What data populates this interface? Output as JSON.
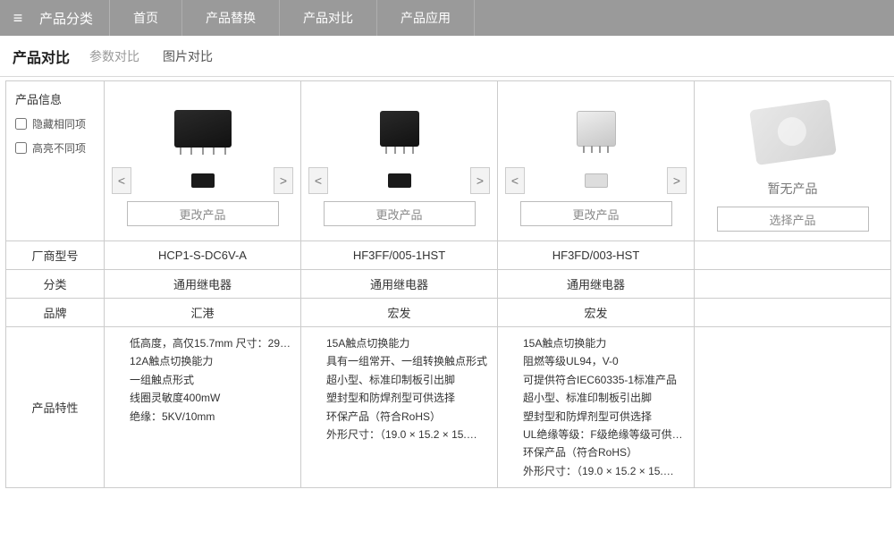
{
  "topnav": {
    "category_label": "产品分类",
    "items": [
      "首页",
      "产品替换",
      "产品对比",
      "产品应用"
    ]
  },
  "subheader": {
    "title": "产品对比",
    "tabs": [
      {
        "label": "参数对比",
        "active": true
      },
      {
        "label": "图片对比",
        "active": false
      }
    ]
  },
  "info_panel": {
    "title": "产品信息",
    "hide_same_label": "隐藏相同项",
    "highlight_diff_label": "高亮不同项"
  },
  "row_labels": {
    "model": "厂商型号",
    "category": "分类",
    "brand": "品牌",
    "features": "产品特性"
  },
  "buttons": {
    "change_product": "更改产品",
    "select_product": "选择产品"
  },
  "empty_slot": {
    "label": "暂无产品"
  },
  "products": [
    {
      "model": "HCP1-S-DC6V-A",
      "category": "通用继电器",
      "brand": "汇港",
      "img_variant": "wide_dark",
      "features": [
        "低高度，高仅15.7mm 尺寸：29.0×…",
        "12A触点切换能力",
        "一组触点形式",
        "线圈灵敏度400mW",
        "绝缘：5KV/10mm"
      ]
    },
    {
      "model": "HF3FF/005-1HST",
      "category": "通用继电器",
      "brand": "宏发",
      "img_variant": "cube_dark",
      "features": [
        "15A触点切换能力",
        "具有一组常开、一组转换触点形式",
        "超小型、标准印制板引出脚",
        "塑封型和防焊剂型可供选择",
        "环保产品（符合RoHS）",
        "外形尺寸：（19.0 × 15.2 × 15.…"
      ]
    },
    {
      "model": "HF3FD/003-HST",
      "category": "通用继电器",
      "brand": "宏发",
      "img_variant": "cube_light",
      "features": [
        "15A触点切换能力",
        "阻燃等级UL94，V-0",
        "可提供符合IEC60335-1标准产品",
        "超小型、标准印制板引出脚",
        "塑封型和防焊剂型可供选择",
        "UL绝缘等级：F级绝缘等级可供…",
        "环保产品（符合RoHS）",
        "外形尺寸：（19.0 × 15.2 × 15.…"
      ]
    }
  ],
  "colors": {
    "topnav_bg": "#9a9a9a",
    "border": "#cccccc",
    "text": "#333333",
    "muted": "#888888"
  }
}
